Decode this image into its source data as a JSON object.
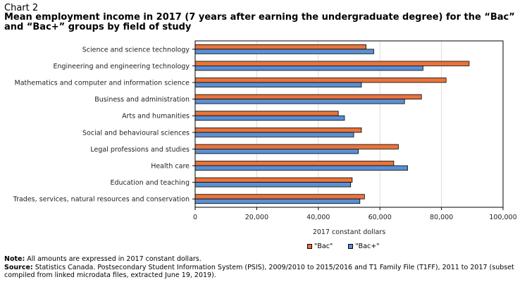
{
  "header": {
    "chart_label": "Chart 2",
    "title": "Mean employment income in 2017 (7 years after earning the undergraduate degree) for the “Bac” and “Bac+” groups by field of study"
  },
  "notes": {
    "note_label": "Note:",
    "note_text": " All amounts are expressed in 2017 constant dollars.",
    "source_label": "Source:",
    "source_text": " Statistics Canada. Postsecondary Student Information System (PSIS), 2009/2010 to 2015/2016 and T1 Family File (T1FF), 2011 to 2017 (subset compiled from linked microdata files, extracted June 19, 2019)."
  },
  "colors": {
    "bac": "#E8743B",
    "bac_plus": "#5B8FD4",
    "grid": "#dddddd",
    "frame": "#000000"
  },
  "chart_data": {
    "type": "bar",
    "orientation": "horizontal",
    "title": "Mean employment income in 2017 (7 years after earning the undergraduate degree) for the “Bac” and “Bac+” groups by field of study",
    "xlabel": "2017 constant dollars",
    "ylabel": "",
    "xlim": [
      0,
      100000
    ],
    "xticks": [
      0,
      20000,
      40000,
      60000,
      80000,
      100000
    ],
    "xtick_labels": [
      "0",
      "20,000",
      "40,000",
      "60,000",
      "80,000",
      "100,000"
    ],
    "grid": true,
    "legend_position": "bottom",
    "categories": [
      "Science and science technology",
      "Engineering and engineering technology",
      "Mathematics and computer and information science",
      "Business and administration",
      "Arts and humanities",
      "Social and behavioural sciences",
      "Legal professions and studies",
      "Health care",
      "Education and teaching",
      "Trades, services, natural resources and conservation"
    ],
    "series": [
      {
        "name": "\"Bac\"",
        "values": [
          55500,
          89000,
          81500,
          73500,
          46500,
          54000,
          66000,
          64500,
          51000,
          55000
        ]
      },
      {
        "name": "\"Bac+\"",
        "values": [
          58000,
          74000,
          54000,
          68000,
          48500,
          51500,
          53000,
          69000,
          50500,
          53500
        ]
      }
    ]
  }
}
